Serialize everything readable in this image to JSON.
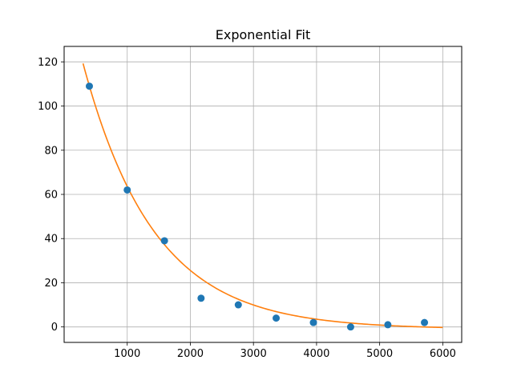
{
  "chart_data": {
    "type": "scatter",
    "title": "Exponential Fit",
    "xlabel": "",
    "ylabel": "",
    "xlim": [
      0,
      6300
    ],
    "ylim": [
      -7,
      127
    ],
    "grid": true,
    "x_ticks": [
      1000,
      2000,
      3000,
      4000,
      5000,
      6000
    ],
    "y_ticks": [
      0,
      20,
      40,
      60,
      80,
      100,
      120
    ],
    "series": [
      {
        "kind": "scatter",
        "color": "#1f77b4",
        "x": [
          400,
          1000,
          1590,
          2170,
          2760,
          3360,
          3950,
          4540,
          5130,
          5710
        ],
        "y": [
          109,
          62,
          39,
          13,
          10,
          4,
          2,
          0,
          1,
          2
        ]
      },
      {
        "kind": "fit_line",
        "color": "#ff7f0e",
        "x_range": [
          300,
          6000
        ],
        "model": {
          "a": 157,
          "b": 0.000888,
          "c": -1
        }
      }
    ]
  }
}
